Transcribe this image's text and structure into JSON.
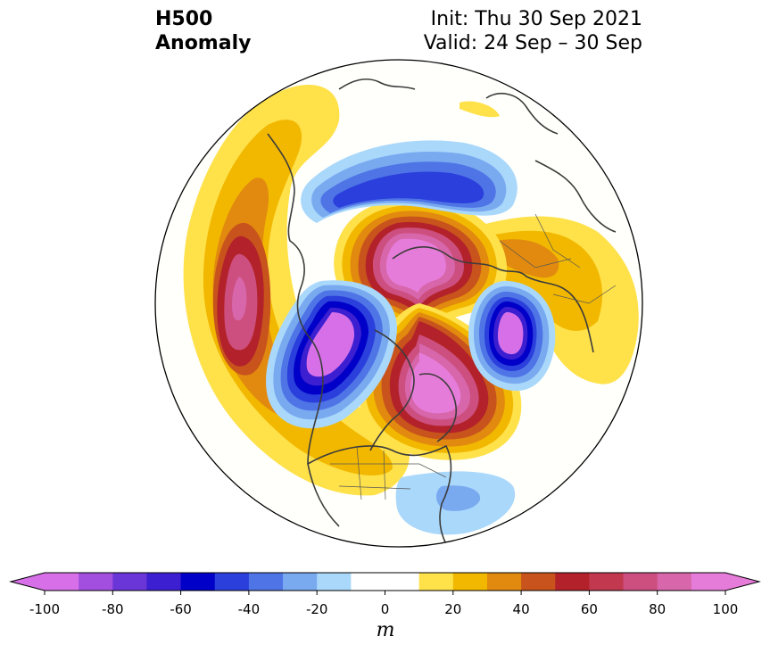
{
  "title": {
    "line1": "H500",
    "line2": "Anomaly"
  },
  "info": {
    "init": "Init: Thu 30 Sep 2021",
    "valid": "Valid: 24 Sep – 30 Sep"
  },
  "colorbar": {
    "ticks": [
      "-100",
      "-80",
      "-60",
      "-40",
      "-20",
      "0",
      "20",
      "40",
      "60",
      "80",
      "100"
    ],
    "unit": "m",
    "colors": [
      "#d770e8",
      "#a24fe0",
      "#6b36d8",
      "#3b1fd0",
      "#0000c8",
      "#2a3fdc",
      "#4f74e6",
      "#79aaf0",
      "#aad8fb",
      "#ffffff",
      "#ffffff",
      "#ffe14a",
      "#f2b800",
      "#e18a0f",
      "#c8531c",
      "#b3222a",
      "#c2384e",
      "#cc4f7f",
      "#d766aa",
      "#e67cd9"
    ],
    "over_color": "#e67cd9",
    "under_color": "#d770e8"
  },
  "map": {
    "projection": "north-polar-stereographic",
    "anomaly_centers": [
      {
        "region": "north-pacific",
        "sign": "positive",
        "peak_m": 70
      },
      {
        "region": "alaska-gulf",
        "sign": "negative",
        "peak_m": -100
      },
      {
        "region": "canada-hudson",
        "sign": "positive",
        "peak_m": 110
      },
      {
        "region": "siberia-arctic",
        "sign": "positive",
        "peak_m": 110
      },
      {
        "region": "east-siberia",
        "sign": "negative",
        "peak_m": -60
      },
      {
        "region": "scandinavia",
        "sign": "negative",
        "peak_m": -100
      },
      {
        "region": "europe",
        "sign": "positive",
        "peak_m": 35
      },
      {
        "region": "us-southeast",
        "sign": "negative",
        "peak_m": -25
      }
    ]
  }
}
